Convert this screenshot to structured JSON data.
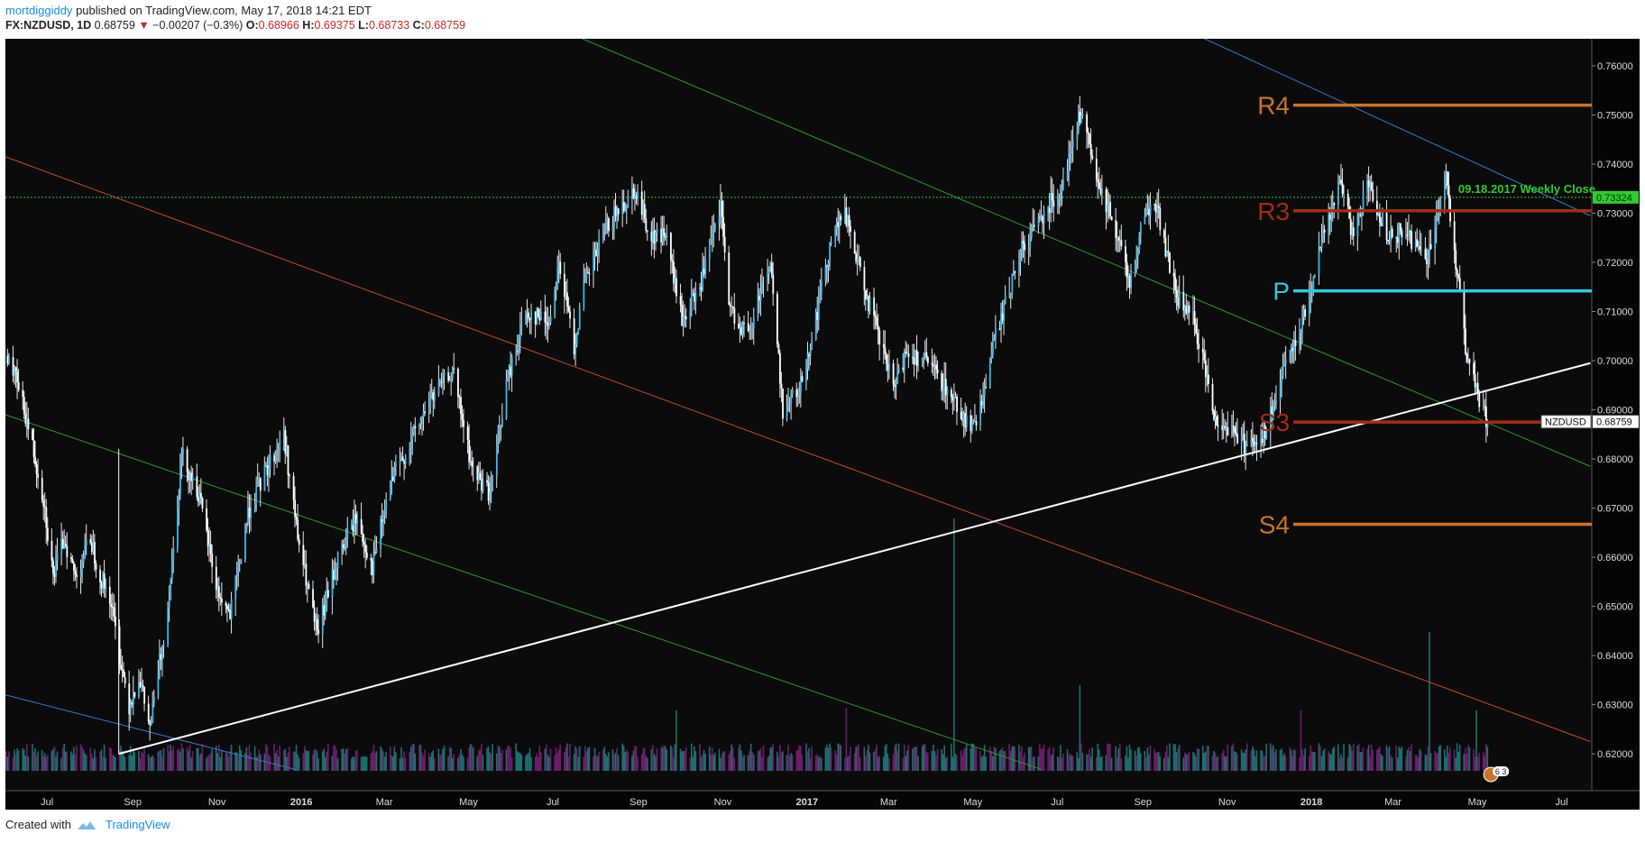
{
  "header": {
    "user": "mortdiggiddy",
    "published": "published on TradingView.com, May 17, 2018 14:21 EDT",
    "symbol": "FX:NZDUSD, 1D",
    "last": "0.68759",
    "change": "−0.00207 (−0.3%)",
    "open_label": "O:",
    "open": "0.68966",
    "high_label": "H:",
    "high": "0.69375",
    "low_label": "L:",
    "low": "0.68733",
    "close_label": "C:",
    "close": "0.68759"
  },
  "footer": {
    "created_with": "Created with",
    "brand": "TradingView"
  },
  "chart_data": {
    "type": "candlestick",
    "symbol": "NZDUSD",
    "last_price": 0.68759,
    "last_price_label": "0.68759",
    "ylim": [
      0.6125,
      0.7655
    ],
    "y_ticks": [
      "0.76000",
      "0.75000",
      "0.74000",
      "0.73000",
      "0.72000",
      "0.71000",
      "0.70000",
      "0.69000",
      "0.68000",
      "0.67000",
      "0.66000",
      "0.65000",
      "0.64000",
      "0.63000",
      "0.62000"
    ],
    "y_tick_values": [
      0.76,
      0.75,
      0.74,
      0.73,
      0.72,
      0.71,
      0.7,
      0.69,
      0.68,
      0.67,
      0.66,
      0.65,
      0.64,
      0.63,
      0.62
    ],
    "x_ticks": [
      "Jul",
      "Sep",
      "Nov",
      "2016",
      "Mar",
      "May",
      "Jul",
      "Sep",
      "Nov",
      "2017",
      "Mar",
      "May",
      "Jul",
      "Sep",
      "Nov",
      "2018",
      "Mar",
      "May",
      "Jul"
    ],
    "x_tick_bold": [
      "2016",
      "2017",
      "2018"
    ],
    "price_path": [
      {
        "x": "2015-06-12",
        "y": 0.701
      },
      {
        "x": "2015-06-24",
        "y": 0.689
      },
      {
        "x": "2015-07-07",
        "y": 0.672
      },
      {
        "x": "2015-07-14",
        "y": 0.656
      },
      {
        "x": "2015-07-22",
        "y": 0.664
      },
      {
        "x": "2015-07-30",
        "y": 0.656
      },
      {
        "x": "2015-08-10",
        "y": 0.664
      },
      {
        "x": "2015-08-17",
        "y": 0.656
      },
      {
        "x": "2015-08-24",
        "y": 0.652
      },
      {
        "x": "2015-08-31",
        "y": 0.64
      },
      {
        "x": "2015-09-07",
        "y": 0.63
      },
      {
        "x": "2015-09-14",
        "y": 0.636
      },
      {
        "x": "2015-09-22",
        "y": 0.625
      },
      {
        "x": "2015-10-05",
        "y": 0.65
      },
      {
        "x": "2015-10-15",
        "y": 0.681
      },
      {
        "x": "2015-10-27",
        "y": 0.673
      },
      {
        "x": "2015-11-10",
        "y": 0.653
      },
      {
        "x": "2015-11-19",
        "y": 0.648
      },
      {
        "x": "2015-12-03",
        "y": 0.67
      },
      {
        "x": "2015-12-14",
        "y": 0.677
      },
      {
        "x": "2015-12-28",
        "y": 0.685
      },
      {
        "x": "2016-01-07",
        "y": 0.664
      },
      {
        "x": "2016-01-21",
        "y": 0.644
      },
      {
        "x": "2016-02-04",
        "y": 0.659
      },
      {
        "x": "2016-02-18",
        "y": 0.668
      },
      {
        "x": "2016-03-01",
        "y": 0.658
      },
      {
        "x": "2016-03-14",
        "y": 0.675
      },
      {
        "x": "2016-03-28",
        "y": 0.683
      },
      {
        "x": "2016-04-12",
        "y": 0.692
      },
      {
        "x": "2016-04-28",
        "y": 0.698
      },
      {
        "x": "2016-05-12",
        "y": 0.678
      },
      {
        "x": "2016-05-25",
        "y": 0.673
      },
      {
        "x": "2016-06-06",
        "y": 0.695
      },
      {
        "x": "2016-06-20",
        "y": 0.71
      },
      {
        "x": "2016-07-07",
        "y": 0.708
      },
      {
        "x": "2016-07-14",
        "y": 0.72
      },
      {
        "x": "2016-07-25",
        "y": 0.703
      },
      {
        "x": "2016-08-01",
        "y": 0.715
      },
      {
        "x": "2016-08-17",
        "y": 0.727
      },
      {
        "x": "2016-09-07",
        "y": 0.735
      },
      {
        "x": "2016-09-19",
        "y": 0.725
      },
      {
        "x": "2016-09-29",
        "y": 0.726
      },
      {
        "x": "2016-10-11",
        "y": 0.708
      },
      {
        "x": "2016-10-24",
        "y": 0.715
      },
      {
        "x": "2016-11-08",
        "y": 0.731
      },
      {
        "x": "2016-11-15",
        "y": 0.71
      },
      {
        "x": "2016-11-29",
        "y": 0.705
      },
      {
        "x": "2016-12-07",
        "y": 0.715
      },
      {
        "x": "2016-12-14",
        "y": 0.72
      },
      {
        "x": "2016-12-23",
        "y": 0.69
      },
      {
        "x": "2017-01-04",
        "y": 0.694
      },
      {
        "x": "2017-01-17",
        "y": 0.71
      },
      {
        "x": "2017-01-27",
        "y": 0.725
      },
      {
        "x": "2017-02-06",
        "y": 0.73
      },
      {
        "x": "2017-02-17",
        "y": 0.718
      },
      {
        "x": "2017-03-03",
        "y": 0.704
      },
      {
        "x": "2017-03-14",
        "y": 0.694
      },
      {
        "x": "2017-03-22",
        "y": 0.702
      },
      {
        "x": "2017-04-05",
        "y": 0.7
      },
      {
        "x": "2017-04-19",
        "y": 0.695
      },
      {
        "x": "2017-05-04",
        "y": 0.688
      },
      {
        "x": "2017-05-11",
        "y": 0.686
      },
      {
        "x": "2017-05-25",
        "y": 0.704
      },
      {
        "x": "2017-06-13",
        "y": 0.722
      },
      {
        "x": "2017-06-29",
        "y": 0.73
      },
      {
        "x": "2017-07-12",
        "y": 0.735
      },
      {
        "x": "2017-07-27",
        "y": 0.751
      },
      {
        "x": "2017-08-08",
        "y": 0.735
      },
      {
        "x": "2017-08-18",
        "y": 0.73
      },
      {
        "x": "2017-08-31",
        "y": 0.716
      },
      {
        "x": "2017-09-11",
        "y": 0.73
      },
      {
        "x": "2017-09-19",
        "y": 0.732
      },
      {
        "x": "2017-10-04",
        "y": 0.713
      },
      {
        "x": "2017-10-17",
        "y": 0.708
      },
      {
        "x": "2017-11-01",
        "y": 0.688
      },
      {
        "x": "2017-11-14",
        "y": 0.686
      },
      {
        "x": "2017-11-22",
        "y": 0.683
      },
      {
        "x": "2017-12-07",
        "y": 0.685
      },
      {
        "x": "2017-12-21",
        "y": 0.698
      },
      {
        "x": "2018-01-05",
        "y": 0.71
      },
      {
        "x": "2018-01-19",
        "y": 0.727
      },
      {
        "x": "2018-01-31",
        "y": 0.736
      },
      {
        "x": "2018-02-08",
        "y": 0.726
      },
      {
        "x": "2018-02-20",
        "y": 0.736
      },
      {
        "x": "2018-03-05",
        "y": 0.726
      },
      {
        "x": "2018-03-19",
        "y": 0.726
      },
      {
        "x": "2018-04-03",
        "y": 0.721
      },
      {
        "x": "2018-04-17",
        "y": 0.737
      },
      {
        "x": "2018-04-25",
        "y": 0.718
      },
      {
        "x": "2018-05-02",
        "y": 0.7
      },
      {
        "x": "2018-05-11",
        "y": 0.692
      },
      {
        "x": "2018-05-17",
        "y": 0.6876
      }
    ],
    "channels": [
      {
        "name": "blue-channel",
        "color": "#3f78c8",
        "start": {
          "x": "2017-03-10",
          "y": 0.795
        },
        "end": {
          "x": "2018-07-31",
          "y": 0.7295
        }
      },
      {
        "name": "blue-channel-lower",
        "color": "#3f78c8",
        "start": {
          "x": "2015-06-10",
          "y": 0.632
        },
        "end": {
          "x": "2016-01-06",
          "y": 0.6168
        }
      },
      {
        "name": "green-channel-upper",
        "color": "#2e9b2e",
        "start": {
          "x": "2016-01-04",
          "y": 0.7905
        },
        "end": {
          "x": "2018-07-31",
          "y": 0.6785
        }
      },
      {
        "name": "green-channel-lower",
        "color": "#2e9b2e",
        "start": {
          "x": "2015-06-10",
          "y": 0.689
        },
        "end": {
          "x": "2017-06-29",
          "y": 0.6168
        }
      },
      {
        "name": "red-channel",
        "color": "#c8502a",
        "start": {
          "x": "2015-06-10",
          "y": 0.7415
        },
        "end": {
          "x": "2018-07-31",
          "y": 0.6225
        }
      }
    ],
    "trendline": {
      "color": "#ffffff",
      "start": {
        "x": "2015-08-31",
        "y": 0.62
      },
      "end": {
        "x": "2018-07-31",
        "y": 0.6995
      }
    },
    "pivot_levels": [
      {
        "label": "R4",
        "value": 0.752,
        "color": "#c8742d"
      },
      {
        "label": "R3",
        "value": 0.7305,
        "color": "#a02d14"
      },
      {
        "label": "P",
        "value": 0.7142,
        "color": "#35c8dc"
      },
      {
        "label": "S3",
        "value": 0.6875,
        "color": "#a02d14"
      },
      {
        "label": "S4",
        "value": 0.6667,
        "color": "#c8742d"
      }
    ],
    "pivot_start": "2017-12-28",
    "weekly_close": {
      "label": "09.18.2017 Weekly Close",
      "value": 0.73324,
      "value_label": "0.73324",
      "color": "#32c832"
    },
    "volume_spikes": [
      {
        "x": "2017-04-26",
        "v": 1.0
      },
      {
        "x": "2018-04-05",
        "v": 0.55
      },
      {
        "x": "2017-07-26",
        "v": 0.34
      },
      {
        "x": "2016-10-07",
        "v": 0.24
      },
      {
        "x": "2017-02-07",
        "v": 0.25
      },
      {
        "x": "2018-01-02",
        "v": 0.24
      },
      {
        "x": "2018-05-09",
        "v": 0.24
      }
    ],
    "badge": "6 3"
  }
}
